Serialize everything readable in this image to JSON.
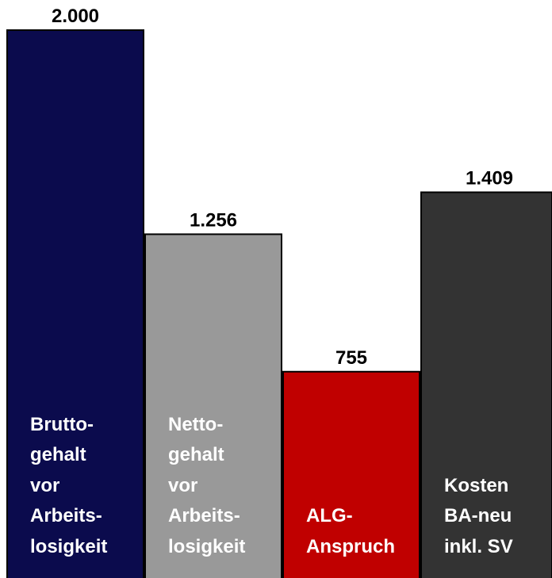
{
  "chart_data": {
    "type": "bar",
    "categories": [
      "Brutto-\ngehalt\nvor\nArbeits-\nlosigkeit",
      "Netto-\ngehalt\nvor\nArbeits-\nlosigkeit",
      "ALG-\nAnspruch",
      "Kosten\nBA-neu\ninkl. SV"
    ],
    "values": [
      2000,
      1256,
      755,
      1409
    ],
    "value_labels": [
      "2.000",
      "1.256",
      "755",
      "1.409"
    ],
    "colors": [
      "#0b0b4d",
      "#999999",
      "#c00000",
      "#333333"
    ],
    "ylim": [
      0,
      2000
    ]
  }
}
